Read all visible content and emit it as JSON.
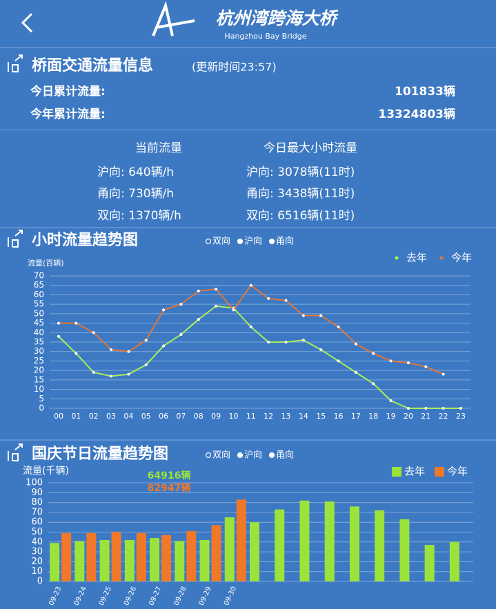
{
  "header": {
    "title": "杭州湾跨海大桥",
    "subtitle": "Hangzhou Bay Bridge"
  },
  "traffic_info": {
    "title": "桥面交通流量信息",
    "update": "(更新时间23:57)",
    "totals": [
      {
        "label": "今日累计流量:",
        "value": "101833辆"
      },
      {
        "label": "今年累计流量:",
        "value": "13324803辆"
      }
    ],
    "current": {
      "headers": [
        "当前流量",
        "今日最大小时流量"
      ],
      "rows": [
        [
          "沪向: 640辆/h",
          "沪向: 3078辆(11时)"
        ],
        [
          "甬向: 730辆/h",
          "甬向: 3438辆(11时)"
        ],
        [
          "双向: 1370辆/h",
          "双向: 6516辆(11时)"
        ]
      ]
    }
  },
  "chart_data": [
    {
      "type": "line",
      "title": "小时流量趋势图",
      "filters": [
        "双向",
        "沪向",
        "甬向"
      ],
      "y_label": "流量(百辆)",
      "categories": [
        "00",
        "01",
        "02",
        "03",
        "04",
        "05",
        "06",
        "07",
        "08",
        "09",
        "10",
        "11",
        "12",
        "13",
        "14",
        "15",
        "16",
        "17",
        "18",
        "19",
        "20",
        "21",
        "22",
        "23"
      ],
      "series": [
        {
          "name": "去年",
          "color": "#a8ef5a",
          "values": [
            38,
            29,
            19,
            17,
            18,
            23,
            33,
            39,
            47,
            54,
            53,
            43,
            35,
            35,
            36,
            31,
            25,
            19,
            13,
            4,
            0,
            0,
            0,
            0
          ]
        },
        {
          "name": "今年",
          "color": "#e27636",
          "values": [
            45,
            45,
            40,
            31,
            30,
            36,
            52,
            55,
            62,
            63,
            52,
            65,
            58,
            57,
            49,
            49,
            43,
            34,
            29,
            25,
            24,
            22,
            18,
            null
          ]
        }
      ],
      "ylim": [
        0,
        70
      ],
      "yticks": [
        0,
        5,
        10,
        15,
        20,
        25,
        30,
        35,
        40,
        45,
        50,
        55,
        60,
        65,
        70
      ],
      "grid": true
    },
    {
      "type": "bar",
      "title": "国庆节日流量趋势图",
      "filters": [
        "双向",
        "沪向",
        "甬向"
      ],
      "y_label": "流量(千辆)",
      "annotations": [
        {
          "text": "64916辆",
          "color": "#9be33b"
        },
        {
          "text": "82947辆",
          "color": "#f07828"
        }
      ],
      "categories": [
        "09-23",
        "09-24",
        "09-25",
        "09-26",
        "09-27",
        "09-28",
        "09-29",
        "09-30",
        null,
        null,
        null,
        null,
        null,
        null,
        null,
        null,
        null
      ],
      "series": [
        {
          "name": "去年",
          "color": "#9be33b",
          "values": [
            39,
            41,
            42,
            42,
            44,
            41,
            42,
            65,
            60,
            73,
            82,
            81,
            76,
            72,
            63,
            37,
            40
          ]
        },
        {
          "name": "今年",
          "color": "#f07828",
          "values": [
            49,
            49,
            50,
            49,
            47,
            51,
            57,
            83,
            null,
            null,
            null,
            null,
            null,
            null,
            null,
            null,
            null
          ]
        }
      ],
      "ylim": [
        0,
        100
      ],
      "yticks": [
        0,
        10,
        20,
        30,
        40,
        50,
        60,
        70,
        80,
        90,
        100
      ],
      "grid": true
    }
  ]
}
